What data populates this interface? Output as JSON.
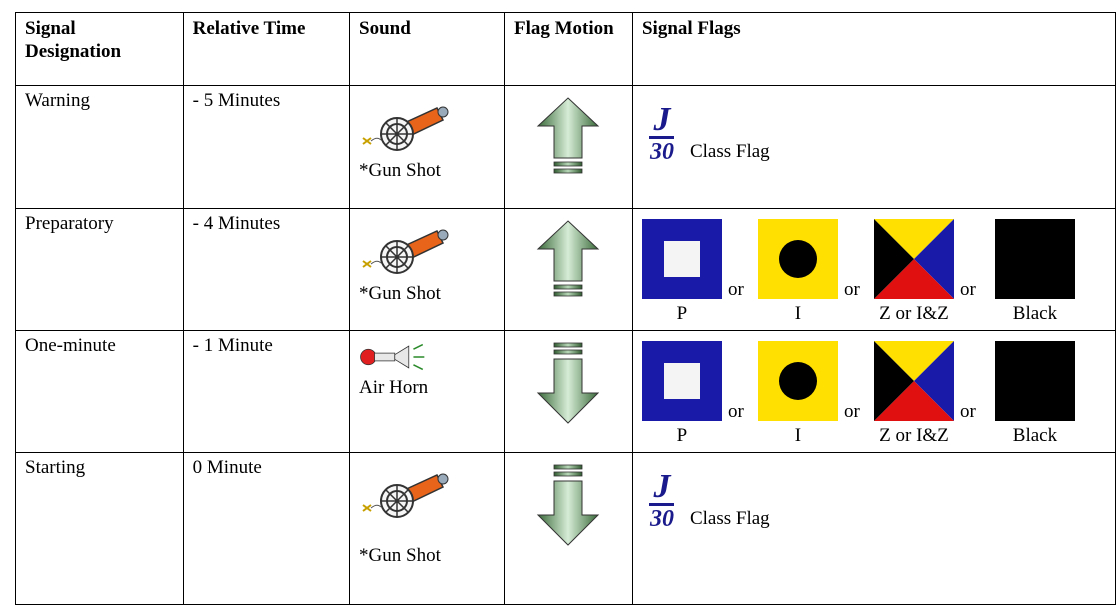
{
  "table": {
    "headers": [
      "Signal Designation",
      "Relative Time",
      "Sound",
      "Flag Motion",
      "Signal Flags"
    ],
    "rows": [
      {
        "designation": "Warning",
        "time": "- 5 Minutes",
        "sound": "*Gun Shot",
        "flags": {
          "logo": {
            "letter": "J",
            "number": "30"
          },
          "label": "Class Flag"
        }
      },
      {
        "designation": "Preparatory",
        "time": "- 4 Minutes",
        "sound": "*Gun Shot",
        "flags": {
          "items": [
            "P",
            "I",
            "Z or I&Z",
            "Black"
          ],
          "connectors": [
            "or",
            "or",
            "or"
          ]
        }
      },
      {
        "designation": "One-minute",
        "time": "- 1 Minute",
        "sound": "Air Horn",
        "flags": {
          "items": [
            "P",
            "I",
            "Z or I&Z",
            "Black"
          ],
          "connectors": [
            "or",
            "or",
            "or"
          ]
        }
      },
      {
        "designation": "Starting",
        "time": "0 Minute",
        "sound": "*Gun Shot",
        "flags": {
          "logo": {
            "letter": "J",
            "number": "30"
          },
          "label": "Class Flag"
        }
      }
    ]
  }
}
